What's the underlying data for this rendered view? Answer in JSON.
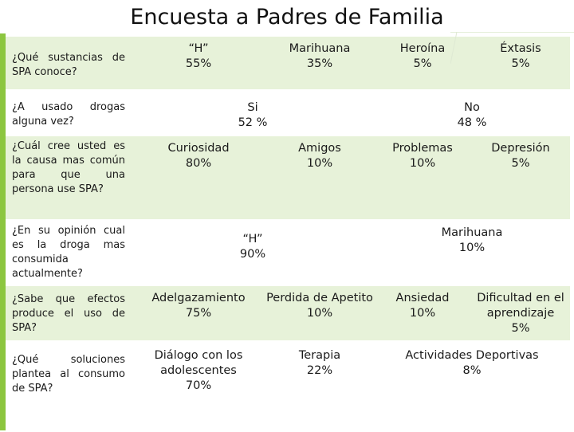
{
  "title": "Encuesta a Padres de Familia",
  "colors": {
    "band": "#e7f2d9",
    "accent": "#8cc63f",
    "white": "#ffffff"
  },
  "rows": [
    {
      "question": "¿Qué sustancias de SPA conoce?",
      "answers": [
        {
          "label": "“H”",
          "value": "55%"
        },
        {
          "label": "Marihuana",
          "value": "35%"
        },
        {
          "label": "Heroína",
          "value": "5%"
        },
        {
          "label": "Éxtasis",
          "value": "5%"
        }
      ]
    },
    {
      "question": "¿A usado drogas alguna vez?",
      "answers": [
        {
          "label": "Si",
          "value": "52 %"
        },
        {
          "label": "No",
          "value": "48 %"
        }
      ]
    },
    {
      "question": "¿Cuál cree usted es la causa mas común para que una persona use SPA?",
      "answers": [
        {
          "label": "Curiosidad",
          "value": "80%"
        },
        {
          "label": "Amigos",
          "value": "10%"
        },
        {
          "label": "Problemas",
          "value": "10%"
        },
        {
          "label": "Depresión",
          "value": "5%"
        }
      ]
    },
    {
      "question": "¿En su opinión cual es la droga mas consumida actualmente?",
      "answers": [
        {
          "label": "“H”",
          "value": "90%"
        },
        {
          "label": "Marihuana",
          "value": "10%"
        }
      ]
    },
    {
      "question": "¿Sabe que efectos produce el uso de SPA?",
      "answers": [
        {
          "label": "Adelgazamiento",
          "value": "75%"
        },
        {
          "label": "Perdida de Apetito",
          "value": "10%"
        },
        {
          "label": "Ansiedad",
          "value": "10%"
        },
        {
          "label": "Dificultad en el aprendizaje",
          "value": "5%"
        }
      ]
    },
    {
      "question": "¿Qué soluciones plantea al consumo de SPA?",
      "answers": [
        {
          "label": "Diálogo con los adolescentes",
          "value": "70%"
        },
        {
          "label": "Terapia",
          "value": "22%"
        },
        {
          "label": "Actividades Deportivas",
          "value": "8%"
        }
      ]
    }
  ]
}
